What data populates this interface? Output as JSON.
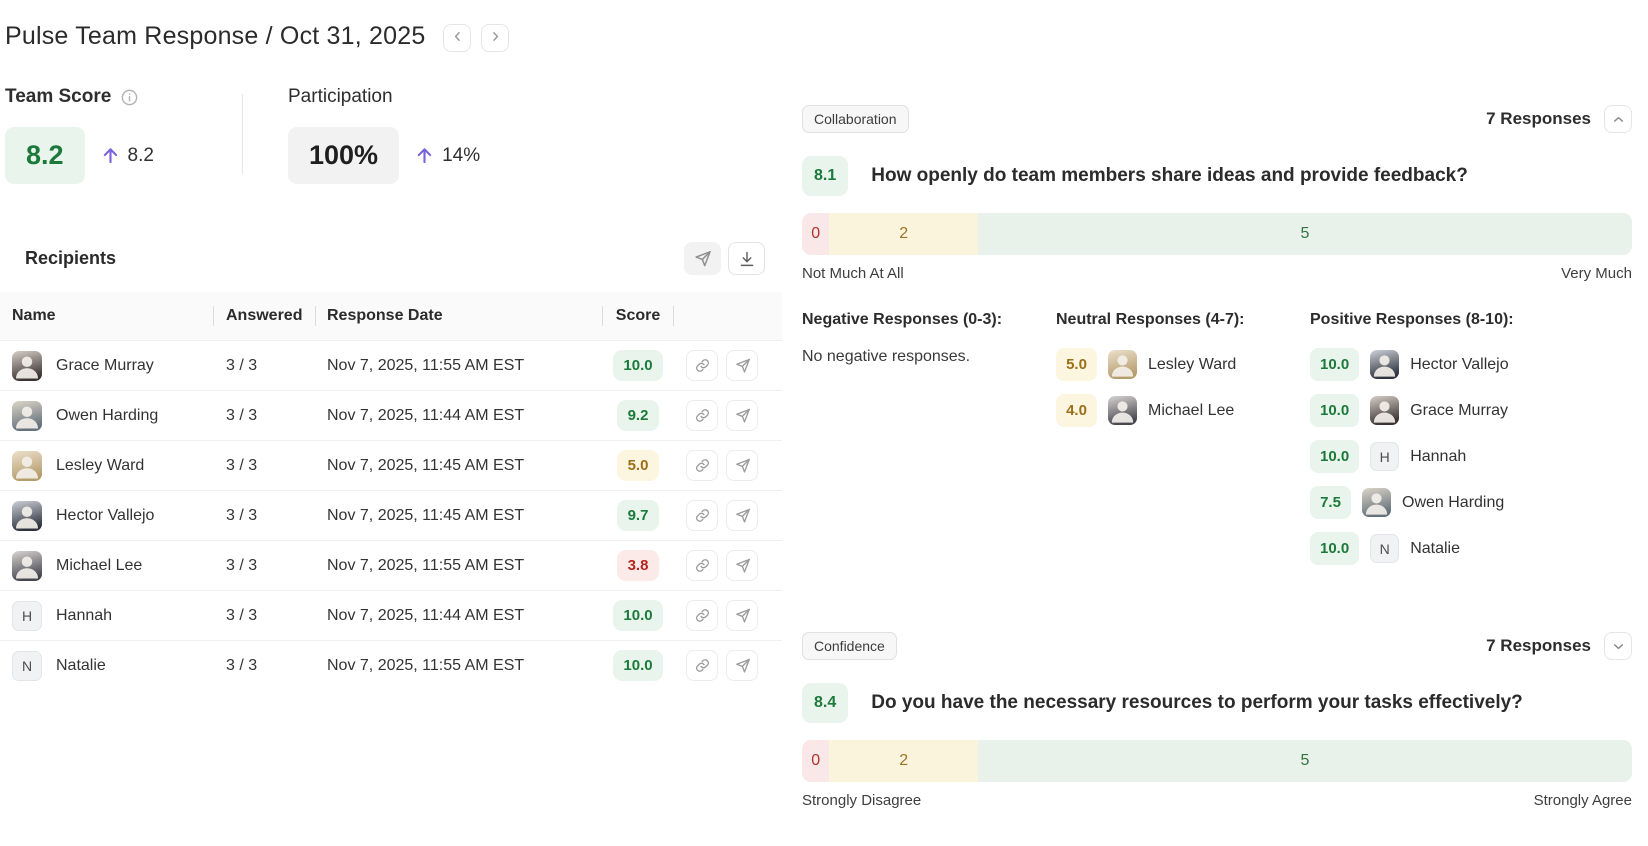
{
  "page": {
    "title": "Pulse Team Response / Oct 31, 2025"
  },
  "colors": {
    "accent_purple": "#7862dd",
    "positive_text": "#1b7a3a",
    "positive_bg": "#e9f4ed",
    "neutral_text": "#9c6f19",
    "neutral_bg": "#fcf5e0",
    "negative_text": "#b3261e",
    "negative_bg": "#fbeae8"
  },
  "metrics": {
    "team_score": {
      "label": "Team Score",
      "value": "8.2",
      "delta": "8.2",
      "info_icon": "info-icon",
      "trend_icon": "arrow-up-icon"
    },
    "participation": {
      "label": "Participation",
      "value": "100%",
      "delta": "14%",
      "trend_icon": "arrow-up-icon"
    }
  },
  "recipients": {
    "title": "Recipients",
    "toolbar": {
      "send_icon": "paper-plane-icon",
      "download_icon": "download-icon"
    },
    "columns": {
      "name": "Name",
      "answered": "Answered",
      "date": "Response Date",
      "score": "Score"
    },
    "row_action_icons": [
      "link-icon",
      "paper-plane-icon"
    ],
    "rows": [
      {
        "name": "Grace Murray",
        "avatar": "photo",
        "initial": "G",
        "avatar_colors": [
          "#d7cfc9",
          "#3b3331"
        ],
        "answered": "3 / 3",
        "date": "Nov 7, 2025, 11:55 AM EST",
        "score": "10.0",
        "level": "positive"
      },
      {
        "name": "Owen Harding",
        "avatar": "photo",
        "initial": "O",
        "avatar_colors": [
          "#ddd6c8",
          "#64707c"
        ],
        "answered": "3 / 3",
        "date": "Nov 7, 2025, 11:44 AM EST",
        "score": "9.2",
        "level": "positive"
      },
      {
        "name": "Lesley Ward",
        "avatar": "photo",
        "initial": "L",
        "avatar_colors": [
          "#ece0cb",
          "#b59c6d"
        ],
        "answered": "3 / 3",
        "date": "Nov 7, 2025, 11:45 AM EST",
        "score": "5.0",
        "level": "neutral"
      },
      {
        "name": "Hector Vallejo",
        "avatar": "photo",
        "initial": "H",
        "avatar_colors": [
          "#cdd1d8",
          "#2d333e"
        ],
        "answered": "3 / 3",
        "date": "Nov 7, 2025, 11:45 AM EST",
        "score": "9.7",
        "level": "positive"
      },
      {
        "name": "Michael Lee",
        "avatar": "photo",
        "initial": "M",
        "avatar_colors": [
          "#d8d5d1",
          "#46464f"
        ],
        "answered": "3 / 3",
        "date": "Nov 7, 2025, 11:55 AM EST",
        "score": "3.8",
        "level": "negative"
      },
      {
        "name": "Hannah",
        "avatar": "initial",
        "initial": "H",
        "answered": "3 / 3",
        "date": "Nov 7, 2025, 11:44 AM EST",
        "score": "10.0",
        "level": "positive"
      },
      {
        "name": "Natalie",
        "avatar": "initial",
        "initial": "N",
        "answered": "3 / 3",
        "date": "Nov 7, 2025, 11:55 AM EST",
        "score": "10.0",
        "level": "positive"
      }
    ]
  },
  "questions": [
    {
      "category": "Collaboration",
      "responses_label": "7 Responses",
      "toggle_icon": "chevron-up-icon",
      "expanded": true,
      "avg_score": "8.1",
      "text": "How openly do team members share ideas and provide feedback?",
      "scale": {
        "left": "Not Much At All",
        "right": "Very Much"
      },
      "distribution": [
        {
          "level": "negative",
          "count": "0",
          "width_pct": 3.3
        },
        {
          "level": "neutral",
          "count": "2",
          "width_pct": 17.9
        },
        {
          "level": "positive",
          "count": "5",
          "width_pct": 78.8
        }
      ],
      "groups": [
        {
          "level": "negative",
          "title": "Negative Responses (0-3):",
          "empty_text": "No negative responses.",
          "items": []
        },
        {
          "level": "neutral",
          "title": "Neutral Responses (4-7):",
          "items": [
            {
              "score": "5.0",
              "name": "Lesley Ward",
              "avatar": "photo",
              "initial": "L",
              "avatar_colors": [
                "#ece0cb",
                "#b59c6d"
              ]
            },
            {
              "score": "4.0",
              "name": "Michael Lee",
              "avatar": "photo",
              "initial": "M",
              "avatar_colors": [
                "#d8d5d1",
                "#46464f"
              ]
            }
          ]
        },
        {
          "level": "positive",
          "title": "Positive Responses (8-10):",
          "items": [
            {
              "score": "10.0",
              "name": "Hector Vallejo",
              "avatar": "photo",
              "initial": "H",
              "avatar_colors": [
                "#cdd1d8",
                "#2d333e"
              ]
            },
            {
              "score": "10.0",
              "name": "Grace Murray",
              "avatar": "photo",
              "initial": "G",
              "avatar_colors": [
                "#d7cfc9",
                "#3b3331"
              ]
            },
            {
              "score": "10.0",
              "name": "Hannah",
              "avatar": "initial",
              "initial": "H"
            },
            {
              "score": "7.5",
              "name": "Owen Harding",
              "avatar": "photo",
              "initial": "O",
              "avatar_colors": [
                "#ddd6c8",
                "#64707c"
              ]
            },
            {
              "score": "10.0",
              "name": "Natalie",
              "avatar": "initial",
              "initial": "N"
            }
          ]
        }
      ]
    },
    {
      "category": "Confidence",
      "responses_label": "7 Responses",
      "toggle_icon": "chevron-down-icon",
      "expanded": false,
      "avg_score": "8.4",
      "text": "Do you have the necessary resources to perform your tasks effectively?",
      "scale": {
        "left": "Strongly Disagree",
        "right": "Strongly Agree"
      },
      "distribution": [
        {
          "level": "negative",
          "count": "0",
          "width_pct": 3.3
        },
        {
          "level": "neutral",
          "count": "2",
          "width_pct": 17.9
        },
        {
          "level": "positive",
          "count": "5",
          "width_pct": 78.8
        }
      ],
      "groups": []
    }
  ]
}
